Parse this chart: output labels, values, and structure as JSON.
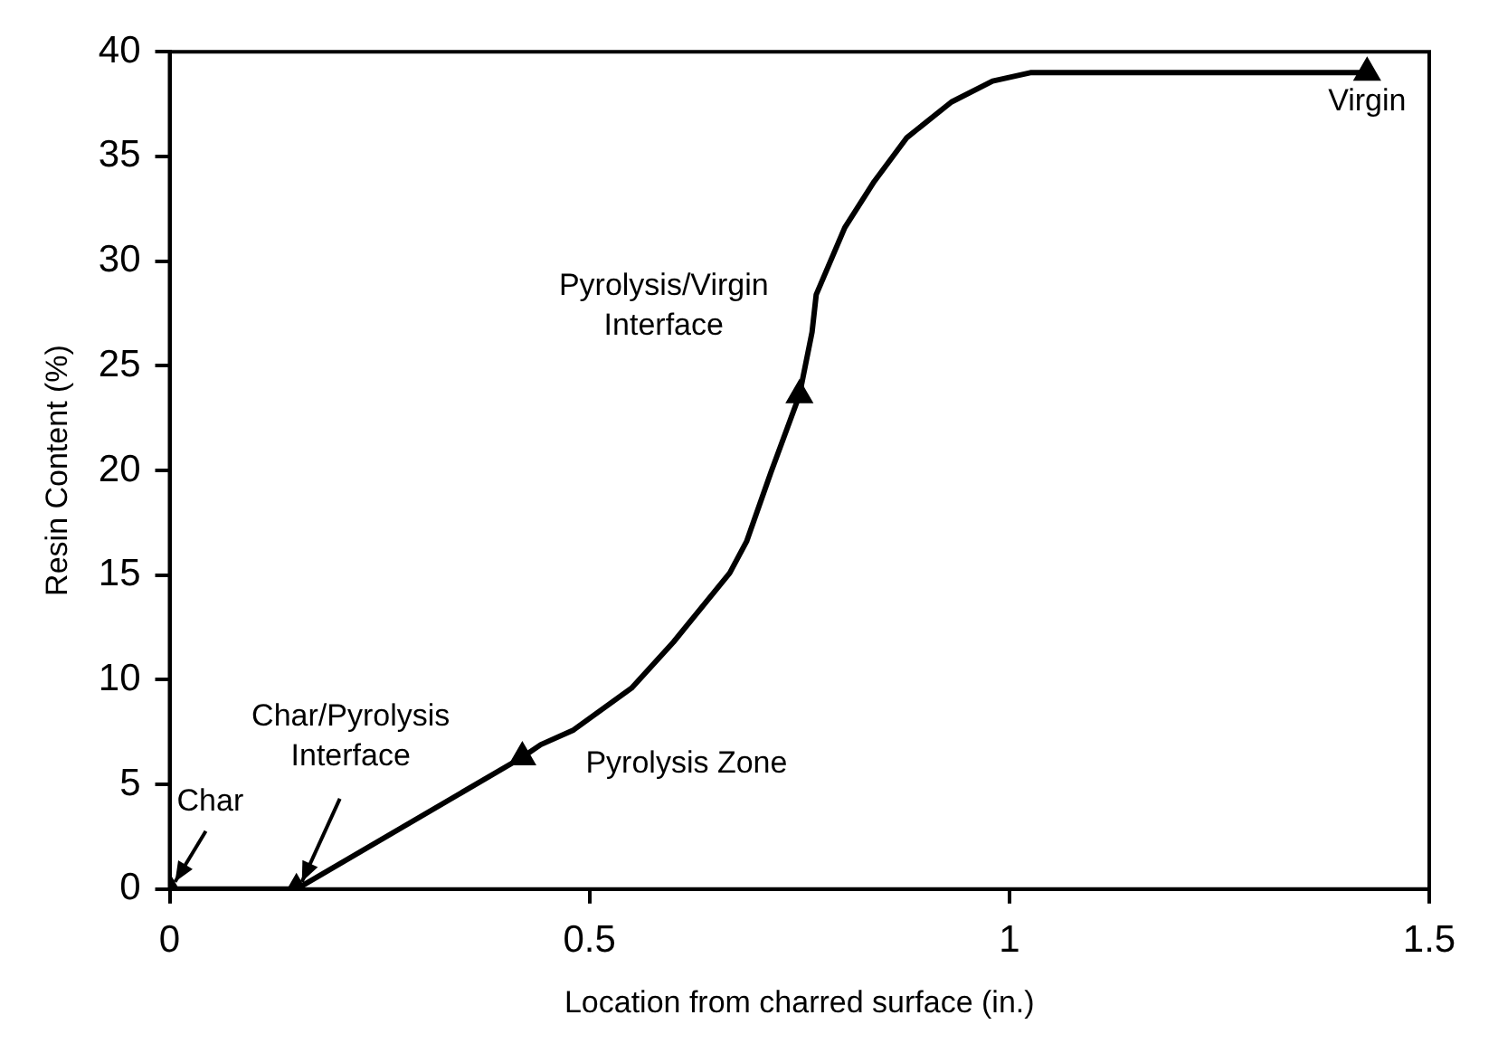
{
  "chart_data": {
    "type": "line",
    "xlabel": "Location from charred surface (in.)",
    "ylabel": "Resin Content (%)",
    "xlim": [
      0,
      1.5
    ],
    "xticks": [
      0,
      0.5,
      1,
      1.5
    ],
    "ylim": [
      0,
      40
    ],
    "yticks": [
      0,
      5,
      10,
      15,
      20,
      25,
      30,
      35,
      40
    ],
    "grid": false,
    "legend": false,
    "series": [
      {
        "type": "line",
        "color": "#000000",
        "marker": "none",
        "x": [
          0,
          0.151,
          0.42,
          0.442,
          0.481,
          0.55,
          0.6,
          0.667,
          0.687,
          0.716,
          0.75,
          0.765,
          0.77,
          0.804,
          0.839,
          0.878,
          0.931,
          0.98,
          1.025,
          1.426
        ],
        "values": [
          0,
          0,
          6.3,
          6.9,
          7.6,
          9.6,
          11.8,
          15.1,
          16.6,
          19.9,
          23.6,
          26.6,
          28.4,
          31.6,
          33.8,
          35.9,
          37.6,
          38.6,
          39,
          39
        ]
      },
      {
        "type": "scatter",
        "color": "#000000",
        "marker": "triangle",
        "x": [
          0,
          0.151,
          0.42,
          0.75,
          1.426
        ],
        "values": [
          0,
          0,
          6.3,
          23.6,
          39
        ]
      }
    ],
    "annotations": [
      {
        "text": "Virgin",
        "x": 1.426,
        "y": 39
      },
      {
        "text": "Pyrolysis/Virgin\nInterface",
        "x": 0.75,
        "y": 23.6
      },
      {
        "text": "Pyrolysis Zone",
        "x": 0.42,
        "y": 6.3
      },
      {
        "text": "Char/Pyrolysis\nInterface",
        "x": 0.151,
        "y": 0
      },
      {
        "text": "Char",
        "x": 0,
        "y": 0
      }
    ]
  }
}
